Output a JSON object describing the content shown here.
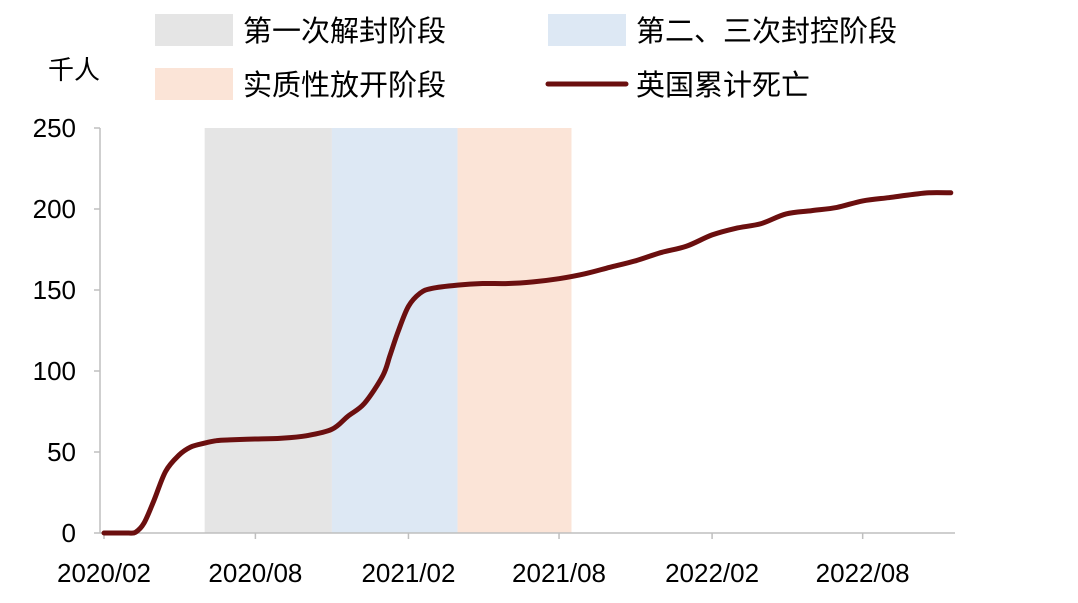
{
  "chart_data": {
    "type": "line",
    "title": "",
    "xlabel": "",
    "ylabel": "千人",
    "ylim": [
      0,
      250
    ],
    "yticks": [
      0,
      50,
      100,
      150,
      200,
      250
    ],
    "xlim": [
      "2020-02-01",
      "2022-11-20"
    ],
    "xticks": [
      {
        "date": "2020-02-01",
        "label": "2020/02"
      },
      {
        "date": "2020-08-01",
        "label": "2020/08"
      },
      {
        "date": "2021-02-01",
        "label": "2021/02"
      },
      {
        "date": "2021-08-01",
        "label": "2021/08"
      },
      {
        "date": "2022-02-01",
        "label": "2022/02"
      },
      {
        "date": "2022-08-01",
        "label": "2022/08"
      }
    ],
    "grid": false,
    "legend_position": "top",
    "phases": [
      {
        "name": "第一次解封阶段",
        "start": "2020-06-01",
        "end": "2020-11-01",
        "color": "#e5e5e5"
      },
      {
        "name": "第二、三次封控阶段",
        "start": "2020-11-01",
        "end": "2021-04-01",
        "color": "#dde8f4"
      },
      {
        "name": "实质性放开阶段",
        "start": "2021-04-01",
        "end": "2021-08-16",
        "color": "#fbe4d7"
      }
    ],
    "series": [
      {
        "name": "英国累计死亡",
        "color": "#6b0f0f",
        "points": [
          [
            "2020-02-01",
            0
          ],
          [
            "2020-02-15",
            0
          ],
          [
            "2020-03-01",
            0
          ],
          [
            "2020-03-10",
            0.5
          ],
          [
            "2020-03-20",
            6
          ],
          [
            "2020-04-01",
            20
          ],
          [
            "2020-04-15",
            38
          ],
          [
            "2020-05-01",
            48
          ],
          [
            "2020-05-15",
            53
          ],
          [
            "2020-06-01",
            55.5
          ],
          [
            "2020-06-15",
            57
          ],
          [
            "2020-07-01",
            57.5
          ],
          [
            "2020-08-01",
            58
          ],
          [
            "2020-09-01",
            58.5
          ],
          [
            "2020-10-01",
            60
          ],
          [
            "2020-11-01",
            64
          ],
          [
            "2020-11-20",
            72
          ],
          [
            "2020-12-10",
            80
          ],
          [
            "2021-01-01",
            97
          ],
          [
            "2021-01-10",
            110
          ],
          [
            "2021-01-20",
            125
          ],
          [
            "2021-02-01",
            140
          ],
          [
            "2021-02-15",
            148
          ],
          [
            "2021-03-01",
            151
          ],
          [
            "2021-04-01",
            153
          ],
          [
            "2021-05-01",
            154
          ],
          [
            "2021-06-01",
            154
          ],
          [
            "2021-07-01",
            155
          ],
          [
            "2021-08-01",
            157
          ],
          [
            "2021-09-01",
            160
          ],
          [
            "2021-10-01",
            164
          ],
          [
            "2021-11-01",
            168
          ],
          [
            "2021-12-01",
            173
          ],
          [
            "2022-01-01",
            177
          ],
          [
            "2022-02-01",
            184
          ],
          [
            "2022-03-01",
            188
          ],
          [
            "2022-04-01",
            191
          ],
          [
            "2022-05-01",
            197
          ],
          [
            "2022-06-01",
            199
          ],
          [
            "2022-07-01",
            201
          ],
          [
            "2022-08-01",
            205
          ],
          [
            "2022-09-01",
            207
          ],
          [
            "2022-10-01",
            209
          ],
          [
            "2022-10-20",
            210
          ],
          [
            "2022-11-15",
            210
          ]
        ]
      }
    ]
  }
}
